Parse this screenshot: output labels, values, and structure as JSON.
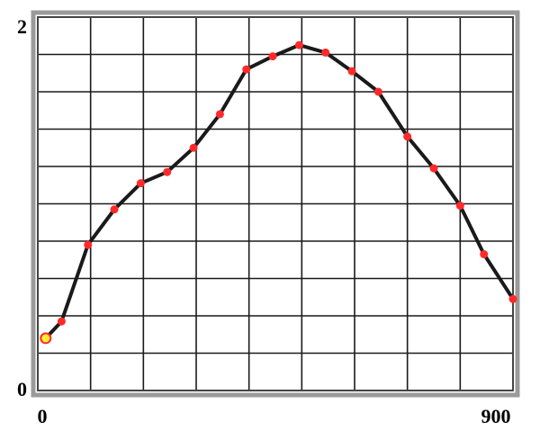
{
  "chart_data": {
    "type": "line",
    "title": "",
    "xlabel": "",
    "ylabel": "",
    "xlim": [
      0,
      900
    ],
    "ylim": [
      0,
      2
    ],
    "x_tick_labels": [
      "0",
      "900"
    ],
    "y_tick_labels": [
      "2",
      "0"
    ],
    "grid": true,
    "colors": {
      "line": "#1a1a1a",
      "marker": "#ff2a2a",
      "start_marker_fill": "#ffee33",
      "start_marker_edge": "#ff2a2a",
      "grid": "#1a1a1a",
      "frame_outer": "#9a9a9a",
      "frame_inner": "#555555"
    },
    "series": [
      {
        "x": [
          15,
          45,
          95,
          145,
          195,
          245,
          295,
          345,
          395,
          445,
          495,
          545,
          595,
          645,
          700,
          750,
          800,
          845,
          900
        ],
        "y": [
          0.28,
          0.37,
          0.78,
          0.97,
          1.11,
          1.17,
          1.3,
          1.48,
          1.72,
          1.79,
          1.85,
          1.81,
          1.71,
          1.6,
          1.36,
          1.19,
          0.99,
          0.73,
          0.49
        ]
      }
    ]
  }
}
